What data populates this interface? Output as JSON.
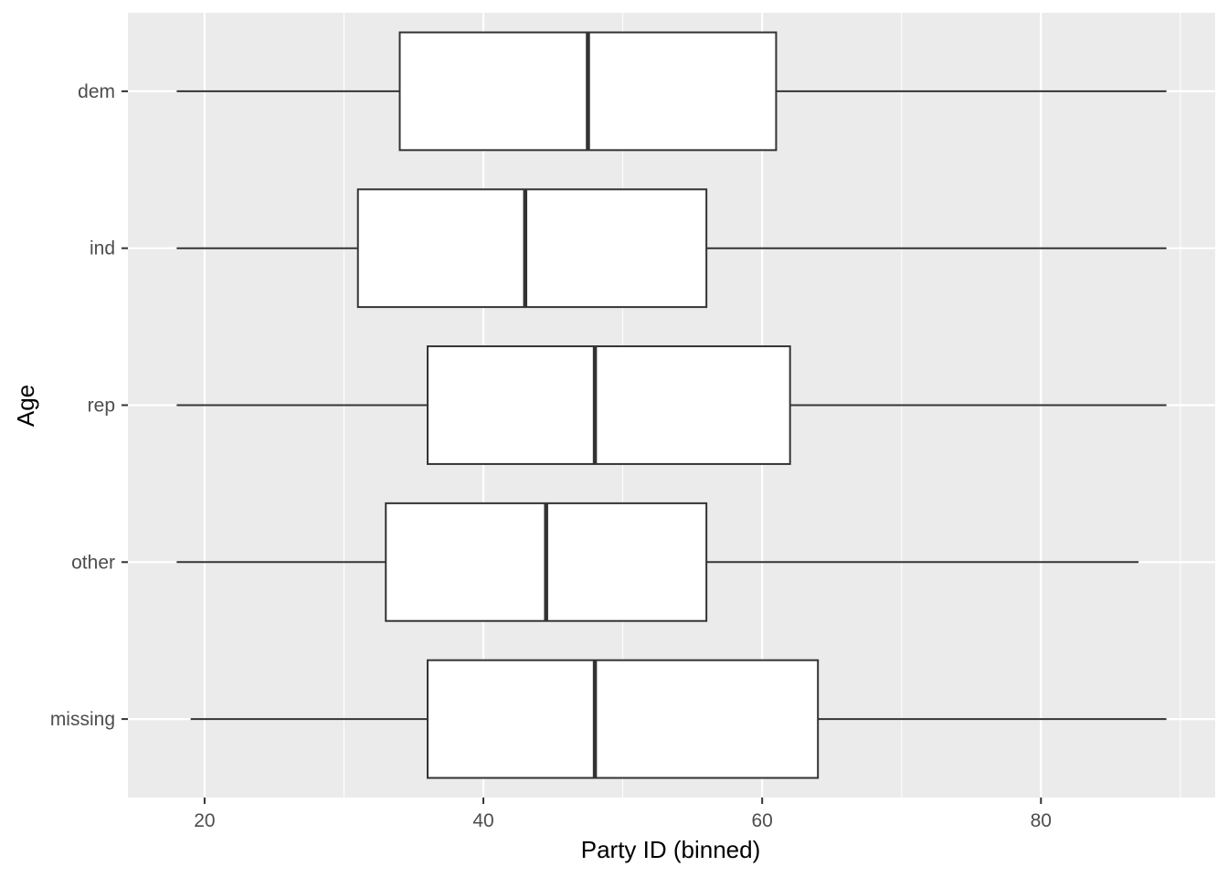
{
  "chart_data": {
    "type": "boxplot",
    "orientation": "horizontal",
    "title": "",
    "xlabel": "Party ID (binned)",
    "ylabel": "Age",
    "xlim": [
      14.5,
      92.5
    ],
    "x_ticks": [
      20,
      40,
      60,
      80
    ],
    "x_tick_labels": [
      "20",
      "40",
      "60",
      "80"
    ],
    "grid": true,
    "panel_background": "#ebebeb",
    "box_fill": "#ffffff",
    "line_color": "#333333",
    "categories": [
      "dem",
      "ind",
      "rep",
      "other",
      "missing"
    ],
    "boxes": [
      {
        "label": "dem",
        "min": 18,
        "q1": 34,
        "median": 47.5,
        "q3": 61,
        "max": 89
      },
      {
        "label": "ind",
        "min": 18,
        "q1": 31,
        "median": 43,
        "q3": 56,
        "max": 89
      },
      {
        "label": "rep",
        "min": 18,
        "q1": 36,
        "median": 48,
        "q3": 62,
        "max": 89
      },
      {
        "label": "other",
        "min": 18,
        "q1": 33,
        "median": 44.5,
        "q3": 56,
        "max": 87
      },
      {
        "label": "missing",
        "min": 19,
        "q1": 36,
        "median": 48,
        "q3": 64,
        "max": 89
      }
    ]
  }
}
